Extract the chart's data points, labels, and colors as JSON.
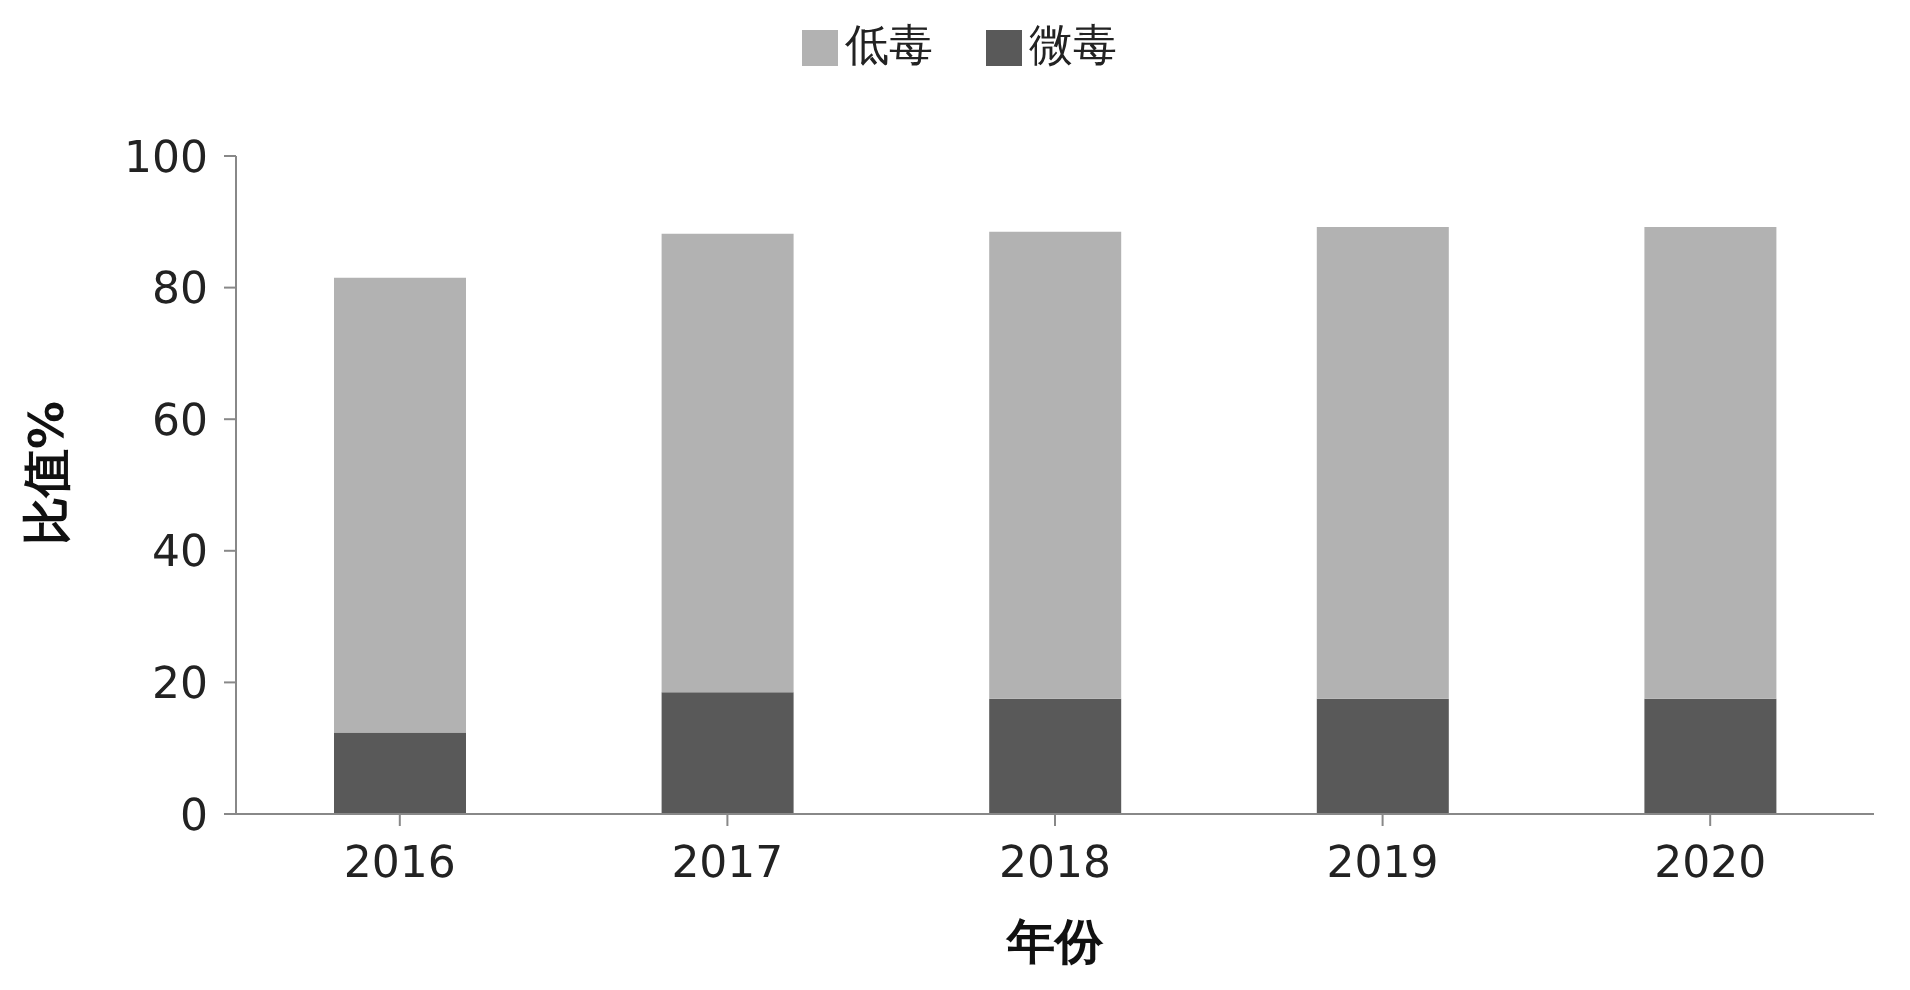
{
  "chart_data": {
    "type": "bar",
    "stacked": true,
    "xlabel": "年份",
    "ylabel": "比值%",
    "categories": [
      "2016",
      "2017",
      "2018",
      "2019",
      "2020"
    ],
    "series": [
      {
        "name": "微毒",
        "color": "#595959",
        "values": [
          12.4,
          18.5,
          17.5,
          17.5,
          17.5
        ]
      },
      {
        "name": "低毒",
        "color": "#b2b2b2",
        "values": [
          69.1,
          69.7,
          71,
          71.7,
          71.7
        ]
      }
    ],
    "ylim": [
      0,
      100
    ],
    "yticks": [
      0,
      20,
      40,
      60,
      80,
      100
    ],
    "grid": false,
    "legend": "top"
  }
}
